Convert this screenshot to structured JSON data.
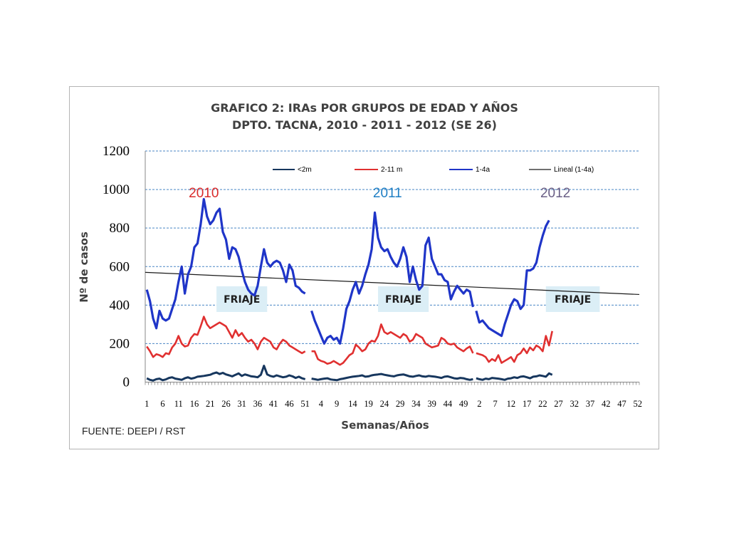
{
  "chart_data": {
    "type": "line",
    "title_lines": [
      "GRAFICO  2: IRAs POR GRUPOS DE EDAD Y AÑOS",
      "DPTO.  TACNA, 2010 - 2011 - 2012 (SE 26)"
    ],
    "xlabel": "Semanas/Años",
    "ylabel": "Nº de casos",
    "ylim": [
      0,
      1200
    ],
    "yticks": [
      0,
      200,
      400,
      600,
      800,
      1000,
      1200
    ],
    "grid": "horizontal dashed",
    "legend_position": "top-right",
    "x_tick_labels": [
      "1",
      "6",
      "11",
      "16",
      "21",
      "26",
      "31",
      "36",
      "41",
      "46",
      "51",
      "4",
      "9",
      "14",
      "19",
      "24",
      "29",
      "34",
      "39",
      "44",
      "49",
      "2",
      "7",
      "12",
      "17",
      "22",
      "27",
      "32",
      "37",
      "42",
      "47",
      "52"
    ],
    "year_labels": [
      {
        "text": "2010",
        "color": "#d92b2b"
      },
      {
        "text": "2011",
        "color": "#1f7fc4"
      },
      {
        "text": "2012",
        "color": "#6a5f86"
      }
    ],
    "annotations": [
      "FRIAJE",
      "FRIAJE",
      "FRIAJE"
    ],
    "source": "FUENTE:  DEEPI / RST",
    "trendline": {
      "name": "Lineal (1-4a)",
      "start": 570,
      "end": 455,
      "color": "#1a1a1a"
    },
    "series": [
      {
        "name": "<2m",
        "color": "#17375e",
        "segments": [
          [
            20,
            12,
            8,
            15,
            18,
            10,
            14,
            22,
            25,
            18,
            15,
            12,
            20,
            25,
            18,
            22,
            28,
            30,
            32,
            35,
            38,
            45,
            50,
            42,
            48,
            40,
            35,
            30,
            38,
            45,
            32,
            40,
            35,
            30,
            28,
            25,
            38,
            85,
            40,
            32,
            28,
            35,
            30,
            25,
            28,
            35,
            30,
            22,
            28,
            20,
            15
          ],
          [
            18,
            15,
            12,
            15,
            18,
            20,
            14,
            12,
            10,
            15,
            18,
            22,
            25,
            28,
            30,
            32,
            35,
            28,
            30,
            35,
            38,
            40,
            42,
            38,
            35,
            32,
            30,
            35,
            38,
            40,
            35,
            30,
            28,
            32,
            35,
            30,
            28,
            32,
            30,
            28,
            25,
            22,
            28,
            30,
            25,
            20,
            18,
            22,
            20,
            15,
            12,
            15
          ],
          [
            20,
            15,
            12,
            18,
            15,
            22,
            20,
            18,
            15,
            12,
            18,
            20,
            25,
            22,
            28,
            30,
            25,
            20,
            28,
            30,
            35,
            32,
            28,
            45,
            38
          ]
        ]
      },
      {
        "name": "2-11 m",
        "color": "#e03030",
        "segments": [
          [
            185,
            160,
            130,
            145,
            140,
            130,
            150,
            145,
            180,
            200,
            240,
            200,
            185,
            190,
            230,
            250,
            245,
            290,
            340,
            300,
            280,
            290,
            300,
            310,
            300,
            290,
            260,
            230,
            270,
            240,
            255,
            230,
            210,
            220,
            200,
            170,
            210,
            230,
            220,
            210,
            180,
            170,
            200,
            220,
            210,
            190,
            180,
            170,
            160,
            150,
            160
          ],
          [
            160,
            160,
            120,
            110,
            105,
            95,
            100,
            110,
            100,
            90,
            100,
            120,
            140,
            150,
            195,
            180,
            160,
            170,
            200,
            215,
            210,
            240,
            300,
            260,
            250,
            260,
            250,
            240,
            230,
            250,
            240,
            210,
            220,
            250,
            240,
            230,
            200,
            190,
            180,
            185,
            190,
            230,
            220,
            200,
            195,
            200,
            180,
            170,
            160,
            175,
            185,
            150
          ],
          [
            150,
            145,
            140,
            130,
            105,
            120,
            110,
            140,
            100,
            110,
            120,
            130,
            105,
            140,
            150,
            175,
            150,
            180,
            165,
            190,
            180,
            160,
            240,
            190,
            265
          ]
        ]
      },
      {
        "name": "1-4a",
        "color": "#1f35c8",
        "segments": [
          [
            480,
            420,
            330,
            280,
            370,
            330,
            320,
            330,
            380,
            430,
            520,
            600,
            460,
            560,
            600,
            700,
            720,
            820,
            950,
            860,
            820,
            840,
            880,
            900,
            780,
            740,
            640,
            700,
            690,
            650,
            580,
            520,
            480,
            460,
            450,
            500,
            600,
            690,
            620,
            600,
            620,
            630,
            620,
            580,
            520,
            610,
            580,
            500,
            490,
            470,
            460
          ],
          [
            370,
            320,
            280,
            240,
            200,
            230,
            240,
            220,
            230,
            200,
            280,
            380,
            420,
            480,
            520,
            460,
            500,
            560,
            610,
            690,
            880,
            750,
            700,
            680,
            690,
            650,
            620,
            600,
            640,
            700,
            650,
            520,
            600,
            530,
            480,
            500,
            710,
            750,
            640,
            600,
            560,
            560,
            530,
            520,
            430,
            470,
            500,
            480,
            460,
            480,
            470,
            390
          ],
          [
            370,
            310,
            320,
            300,
            280,
            270,
            260,
            250,
            240,
            300,
            350,
            400,
            430,
            420,
            380,
            400,
            580,
            580,
            590,
            620,
            700,
            760,
            810,
            840
          ]
        ]
      }
    ]
  }
}
